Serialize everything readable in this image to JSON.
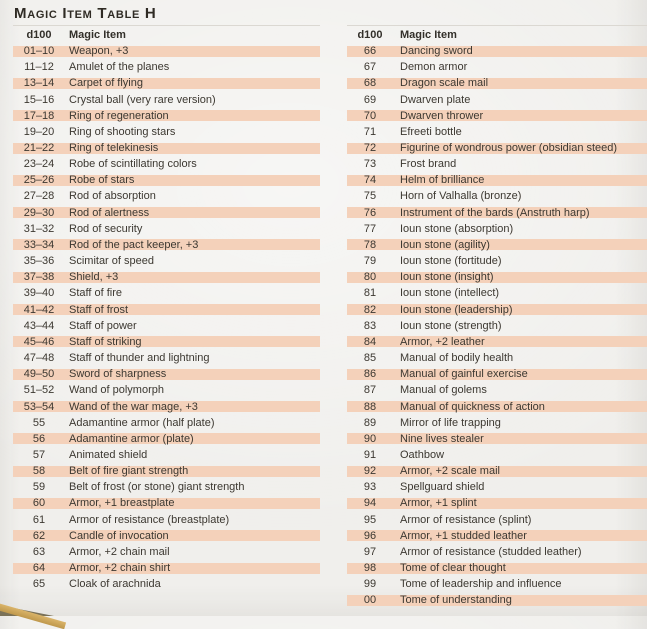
{
  "title": "Magic Item Table H",
  "colors": {
    "page_bg": "#f0efec",
    "row_shade": "#f4d1ba",
    "text": "#3c3831",
    "corner_gold": "#c8a558",
    "corner_dark": "#7a7157"
  },
  "columns": [
    {
      "headers": {
        "roll": "d100",
        "item": "Magic Item"
      },
      "rows": [
        {
          "roll": "01–10",
          "item": "Weapon, +3"
        },
        {
          "roll": "11–12",
          "item": "Amulet of the planes"
        },
        {
          "roll": "13–14",
          "item": "Carpet of flying"
        },
        {
          "roll": "15–16",
          "item": "Crystal ball (very rare version)"
        },
        {
          "roll": "17–18",
          "item": "Ring of regeneration"
        },
        {
          "roll": "19–20",
          "item": "Ring of shooting stars"
        },
        {
          "roll": "21–22",
          "item": "Ring of telekinesis"
        },
        {
          "roll": "23–24",
          "item": "Robe of scintillating colors"
        },
        {
          "roll": "25–26",
          "item": "Robe of stars"
        },
        {
          "roll": "27–28",
          "item": "Rod of absorption"
        },
        {
          "roll": "29–30",
          "item": "Rod of alertness"
        },
        {
          "roll": "31–32",
          "item": "Rod of security"
        },
        {
          "roll": "33–34",
          "item": "Rod of the pact keeper, +3"
        },
        {
          "roll": "35–36",
          "item": "Scimitar of speed"
        },
        {
          "roll": "37–38",
          "item": "Shield, +3"
        },
        {
          "roll": "39–40",
          "item": "Staff of fire"
        },
        {
          "roll": "41–42",
          "item": "Staff of frost"
        },
        {
          "roll": "43–44",
          "item": "Staff of power"
        },
        {
          "roll": "45–46",
          "item": "Staff of striking"
        },
        {
          "roll": "47–48",
          "item": "Staff of thunder and lightning"
        },
        {
          "roll": "49–50",
          "item": "Sword of sharpness"
        },
        {
          "roll": "51–52",
          "item": "Wand of polymorph"
        },
        {
          "roll": "53–54",
          "item": "Wand of the war mage, +3"
        },
        {
          "roll": "55",
          "item": "Adamantine armor (half plate)"
        },
        {
          "roll": "56",
          "item": "Adamantine armor (plate)"
        },
        {
          "roll": "57",
          "item": "Animated shield"
        },
        {
          "roll": "58",
          "item": "Belt of fire giant strength"
        },
        {
          "roll": "59",
          "item": "Belt of frost (or stone) giant strength"
        },
        {
          "roll": "60",
          "item": "Armor, +1 breastplate"
        },
        {
          "roll": "61",
          "item": "Armor of resistance (breastplate)"
        },
        {
          "roll": "62",
          "item": "Candle of invocation"
        },
        {
          "roll": "63",
          "item": "Armor, +2 chain mail"
        },
        {
          "roll": "64",
          "item": "Armor, +2 chain shirt"
        },
        {
          "roll": "65",
          "item": "Cloak of arachnida"
        }
      ]
    },
    {
      "headers": {
        "roll": "d100",
        "item": "Magic Item"
      },
      "rows": [
        {
          "roll": "66",
          "item": "Dancing sword"
        },
        {
          "roll": "67",
          "item": "Demon armor"
        },
        {
          "roll": "68",
          "item": "Dragon scale mail"
        },
        {
          "roll": "69",
          "item": "Dwarven plate"
        },
        {
          "roll": "70",
          "item": "Dwarven thrower"
        },
        {
          "roll": "71",
          "item": "Efreeti bottle"
        },
        {
          "roll": "72",
          "item": "Figurine of wondrous power (obsidian steed)"
        },
        {
          "roll": "73",
          "item": "Frost brand"
        },
        {
          "roll": "74",
          "item": "Helm of brilliance"
        },
        {
          "roll": "75",
          "item": "Horn of Valhalla (bronze)"
        },
        {
          "roll": "76",
          "item": "Instrument of the bards (Anstruth harp)"
        },
        {
          "roll": "77",
          "item": "Ioun stone (absorption)"
        },
        {
          "roll": "78",
          "item": "Ioun stone (agility)"
        },
        {
          "roll": "79",
          "item": "Ioun stone (fortitude)"
        },
        {
          "roll": "80",
          "item": "Ioun stone (insight)"
        },
        {
          "roll": "81",
          "item": "Ioun stone (intellect)"
        },
        {
          "roll": "82",
          "item": "Ioun stone (leadership)"
        },
        {
          "roll": "83",
          "item": "Ioun stone (strength)"
        },
        {
          "roll": "84",
          "item": "Armor, +2 leather"
        },
        {
          "roll": "85",
          "item": "Manual of bodily health"
        },
        {
          "roll": "86",
          "item": "Manual of gainful exercise"
        },
        {
          "roll": "87",
          "item": "Manual of golems"
        },
        {
          "roll": "88",
          "item": "Manual of quickness of action"
        },
        {
          "roll": "89",
          "item": "Mirror of life trapping"
        },
        {
          "roll": "90",
          "item": "Nine lives stealer"
        },
        {
          "roll": "91",
          "item": "Oathbow"
        },
        {
          "roll": "92",
          "item": "Armor, +2 scale mail"
        },
        {
          "roll": "93",
          "item": "Spellguard shield"
        },
        {
          "roll": "94",
          "item": "Armor, +1 splint"
        },
        {
          "roll": "95",
          "item": "Armor of resistance (splint)"
        },
        {
          "roll": "96",
          "item": "Armor, +1 studded leather"
        },
        {
          "roll": "97",
          "item": "Armor of resistance (studded leather)"
        },
        {
          "roll": "98",
          "item": "Tome of clear thought"
        },
        {
          "roll": "99",
          "item": "Tome of leadership and influence"
        },
        {
          "roll": "00",
          "item": "Tome of understanding"
        }
      ]
    }
  ]
}
